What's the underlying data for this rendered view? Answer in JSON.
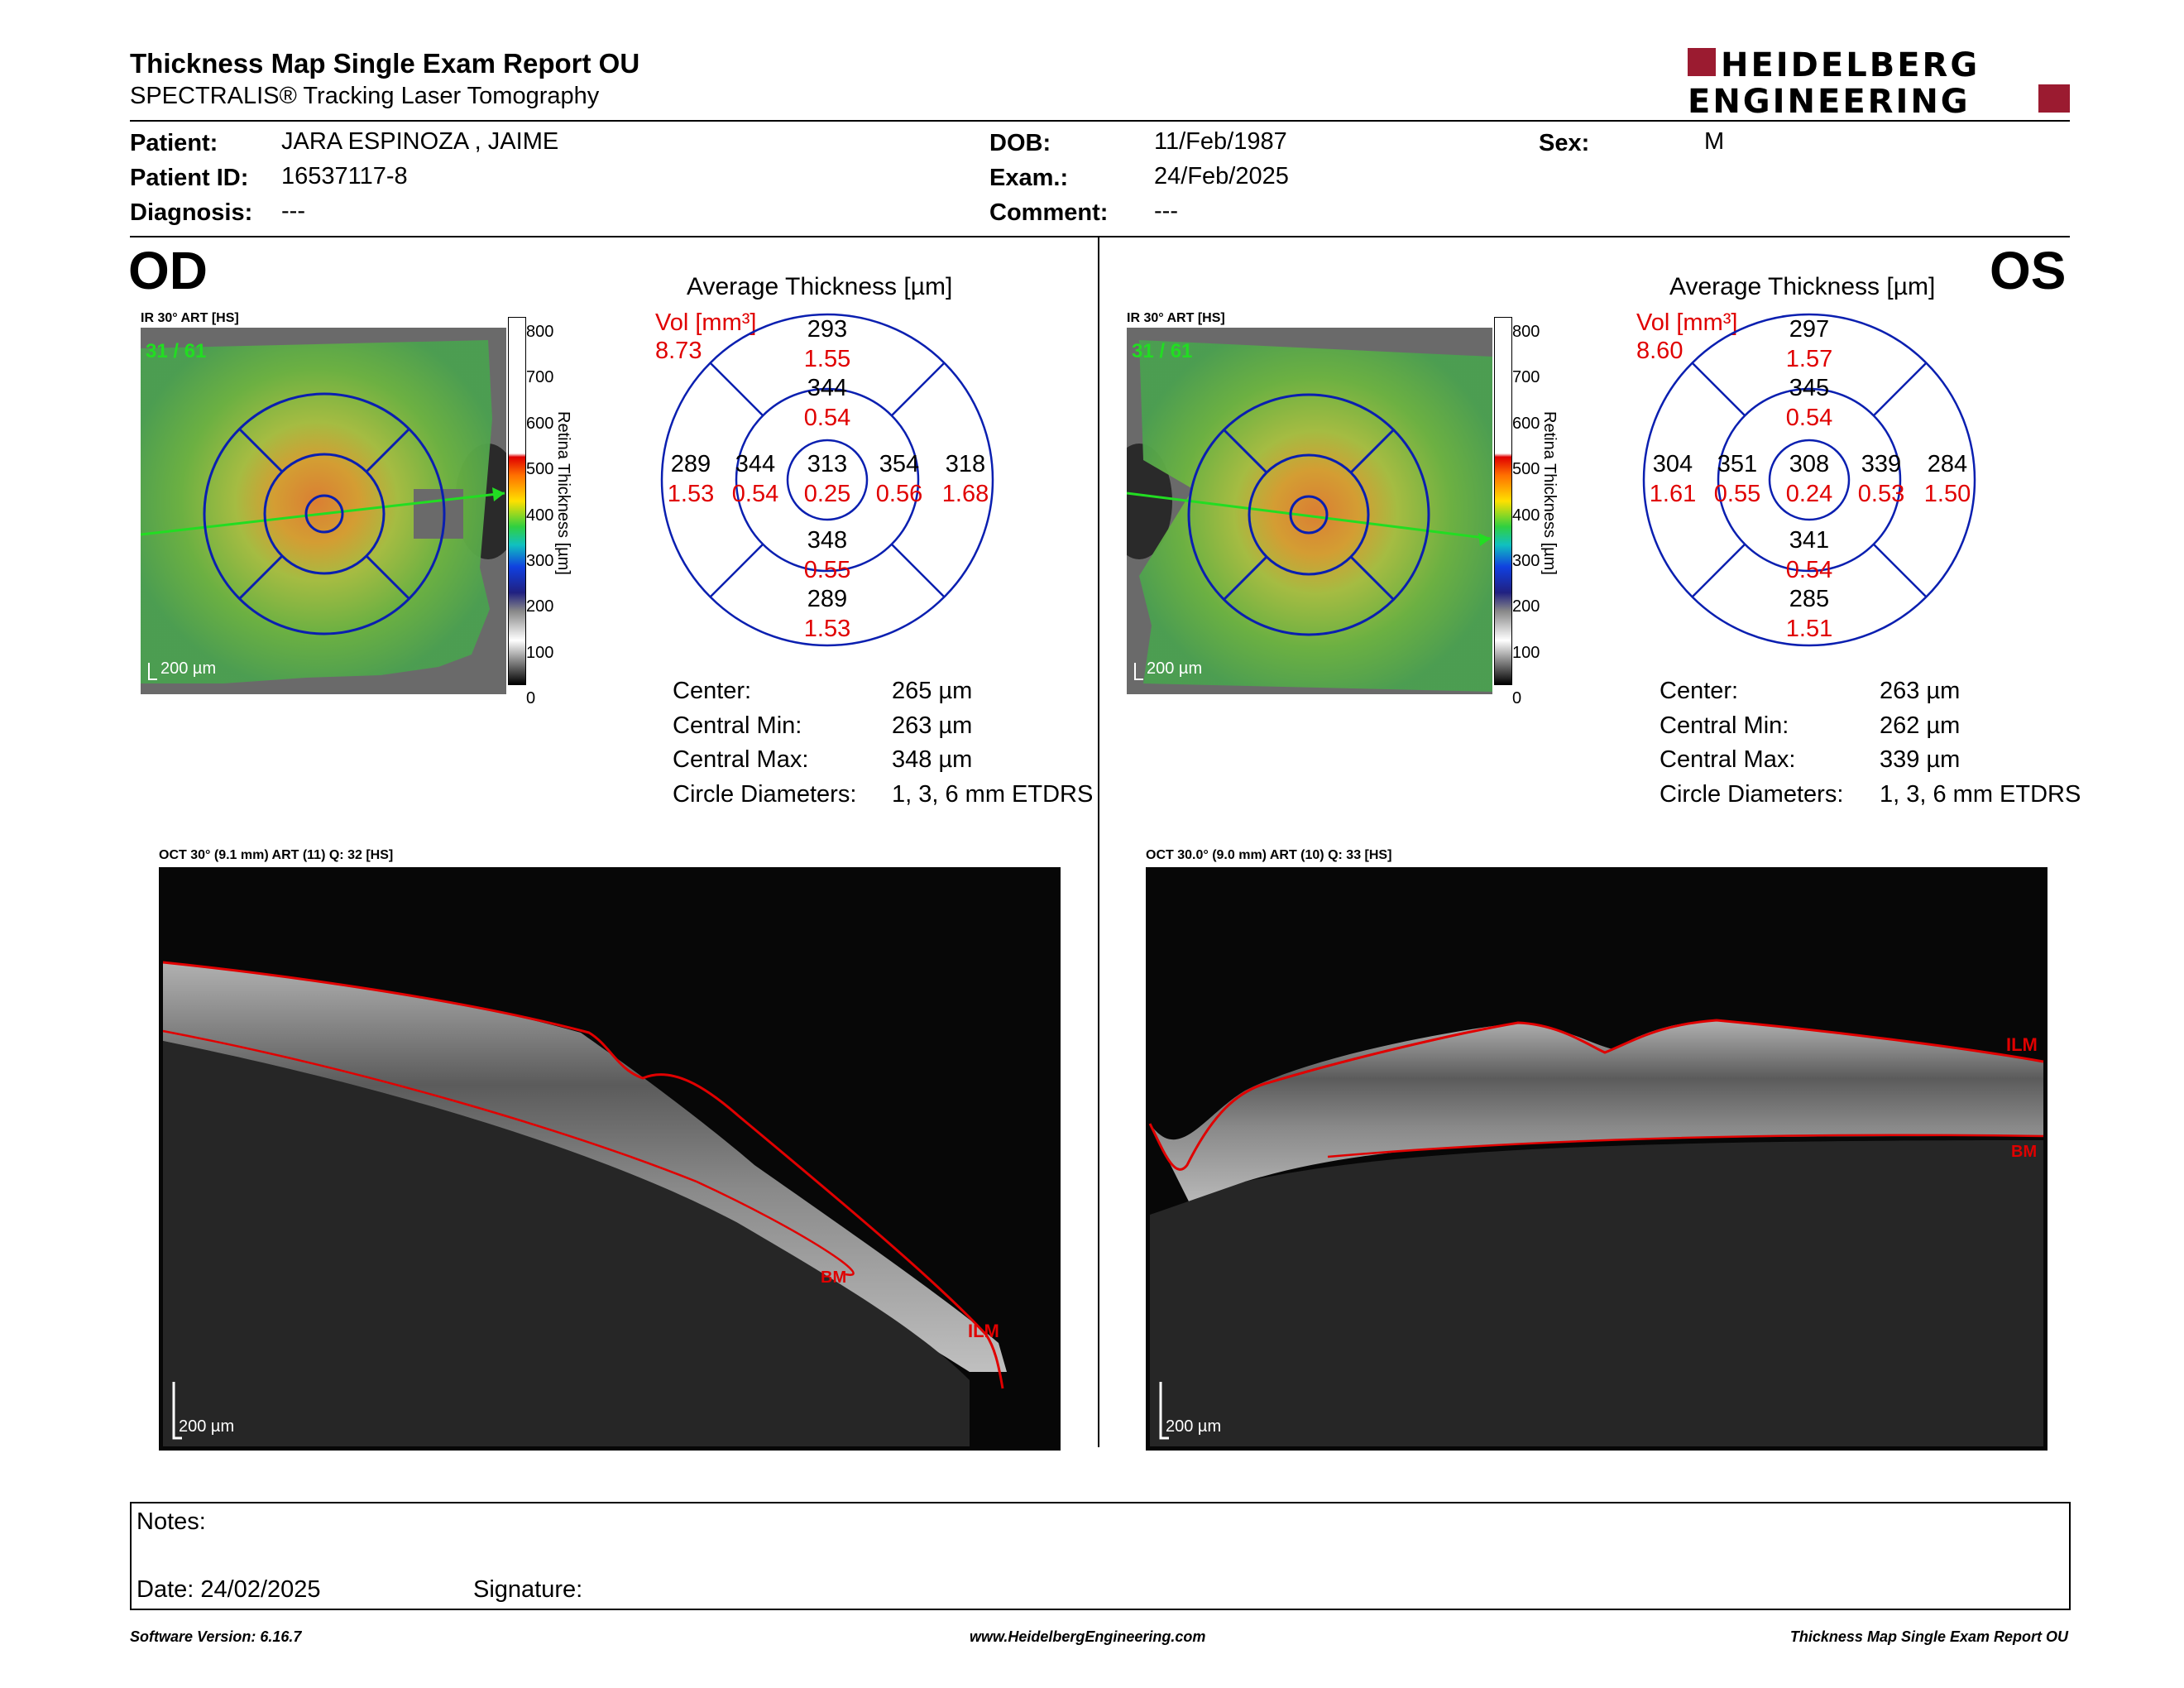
{
  "header": {
    "title": "Thickness Map Single Exam Report OU",
    "subtitle": "SPECTRALIS® Tracking Laser Tomography",
    "logo_line1": "HEIDELBERG",
    "logo_line2": "ENGINEERING"
  },
  "patient": {
    "patient_label": "Patient:",
    "patient_value": "JARA ESPINOZA , JAIME",
    "id_label": "Patient ID:",
    "id_value": "16537117-8",
    "diag_label": "Diagnosis:",
    "diag_value": "---",
    "dob_label": "DOB:",
    "dob_value": "11/Feb/1987",
    "exam_label": "Exam.:",
    "exam_value": "24/Feb/2025",
    "comment_label": "Comment:",
    "comment_value": "---",
    "sex_label": "Sex:",
    "sex_value": "M"
  },
  "colorbar": {
    "ticks": [
      "800",
      "700",
      "600",
      "500",
      "400",
      "300",
      "200",
      "100",
      "0"
    ],
    "label": "Retina Thickness [µm]"
  },
  "od": {
    "eye": "OD",
    "ir_caption": "IR 30° ART [HS]",
    "frame": "31 / 61",
    "scale": "200 µm",
    "avg_title": "Average Thickness [µm]",
    "vol_label": "Vol [mm³]",
    "vol_value": "8.73",
    "sectors": {
      "center": [
        "313",
        "0.25"
      ],
      "inner_sup": [
        "344",
        "0.54"
      ],
      "inner_inf": [
        "348",
        "0.55"
      ],
      "inner_left": [
        "344",
        "0.54"
      ],
      "inner_right": [
        "354",
        "0.56"
      ],
      "outer_sup": [
        "293",
        "1.55"
      ],
      "outer_inf": [
        "289",
        "1.53"
      ],
      "outer_left": [
        "289",
        "1.53"
      ],
      "outer_right": [
        "318",
        "1.68"
      ]
    },
    "stats": [
      {
        "label": "Center:",
        "value": "265 µm"
      },
      {
        "label": "Central Min:",
        "value": "263 µm"
      },
      {
        "label": "Central Max:",
        "value": "348 µm"
      },
      {
        "label": "Circle Diameters:",
        "value": "1, 3, 6 mm ETDRS"
      }
    ],
    "oct_caption": "OCT 30° (9.1 mm) ART (11) Q: 32 [HS]",
    "oct_scale": "200 µm",
    "ilm": "ILM",
    "bm": "BM"
  },
  "os": {
    "eye": "OS",
    "ir_caption": "IR 30° ART [HS]",
    "frame": "31 / 61",
    "scale": "200 µm",
    "avg_title": "Average Thickness [µm]",
    "vol_label": "Vol [mm³]",
    "vol_value": "8.60",
    "sectors": {
      "center": [
        "308",
        "0.24"
      ],
      "inner_sup": [
        "345",
        "0.54"
      ],
      "inner_inf": [
        "341",
        "0.54"
      ],
      "inner_left": [
        "351",
        "0.55"
      ],
      "inner_right": [
        "339",
        "0.53"
      ],
      "outer_sup": [
        "297",
        "1.57"
      ],
      "outer_inf": [
        "285",
        "1.51"
      ],
      "outer_left": [
        "304",
        "1.61"
      ],
      "outer_right": [
        "284",
        "1.50"
      ]
    },
    "stats": [
      {
        "label": "Center:",
        "value": "263 µm"
      },
      {
        "label": "Central Min:",
        "value": "262 µm"
      },
      {
        "label": "Central Max:",
        "value": "339 µm"
      },
      {
        "label": "Circle Diameters:",
        "value": "1, 3, 6 mm ETDRS"
      }
    ],
    "oct_caption": "OCT 30.0° (9.0 mm) ART (10) Q: 33 [HS]",
    "oct_scale": "200 µm",
    "ilm": "ILM",
    "bm": "BM"
  },
  "notes": {
    "notes_label": "Notes:",
    "date_label": "Date: 24/02/2025",
    "signature_label": "Signature:"
  },
  "footer": {
    "software": "Software Version: 6.16.7",
    "url": "www.HeidelbergEngineering.com",
    "report": "Thickness Map Single Exam Report OU"
  }
}
